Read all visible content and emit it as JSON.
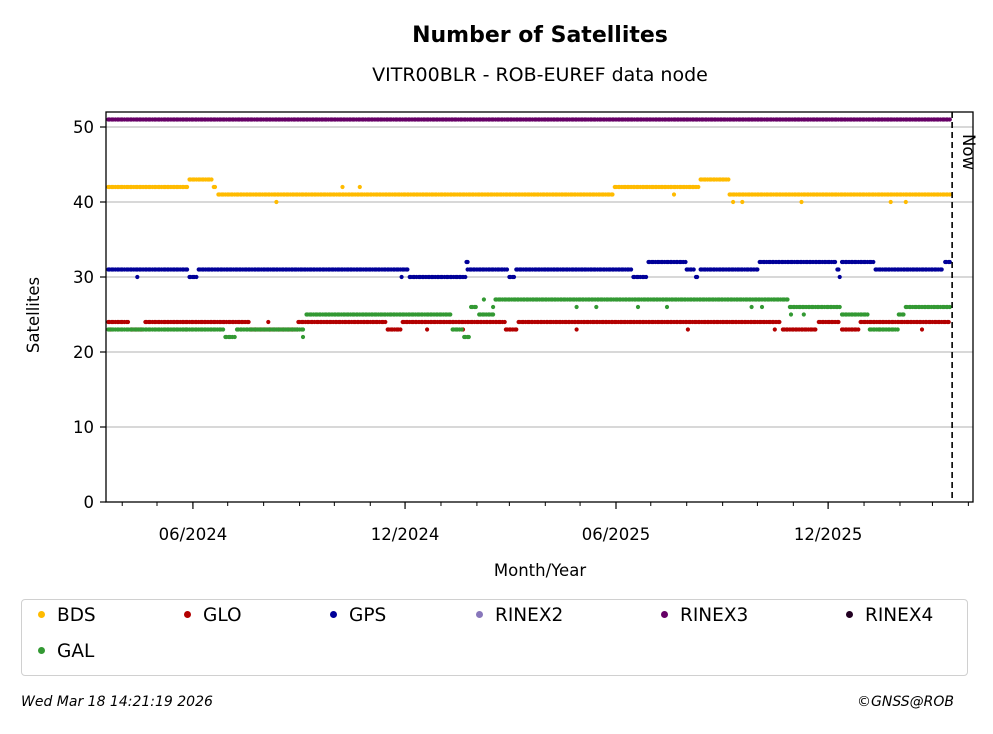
{
  "footer": {
    "timestamp": "Wed Mar 18 14:21:19 2026",
    "credit": "©GNSS@ROB"
  },
  "chart_data": {
    "type": "scatter",
    "title": "Number of Satellites",
    "subtitle": "VITR00BLR - ROB-EUREF data node",
    "xlabel": "Month/Year",
    "ylabel": "Satellites",
    "x_type": "date",
    "xlim": [
      "2024-03-18",
      "2026-04-05"
    ],
    "ylim": [
      0,
      52
    ],
    "yticks": [
      0,
      10,
      20,
      30,
      40,
      50
    ],
    "xticks": [
      {
        "date": "2024-06-01",
        "label": "06/2024"
      },
      {
        "date": "2024-12-01",
        "label": "12/2024"
      },
      {
        "date": "2025-06-01",
        "label": "06/2025"
      },
      {
        "date": "2025-12-01",
        "label": "12/2025"
      }
    ],
    "grid": "y",
    "now_marker": {
      "date": "2026-03-18",
      "label": "Now",
      "linestyle": "dashed"
    },
    "legend_position": "below",
    "series": [
      {
        "name": "BDS",
        "color": "#ffbb00",
        "segments": [
          {
            "from": "2024-03-20",
            "to": "2024-05-28",
            "value": 42
          },
          {
            "from": "2024-05-29",
            "to": "2024-06-18",
            "value": 43
          },
          {
            "from": "2024-06-19",
            "to": "2024-06-22",
            "value": 42
          },
          {
            "from": "2024-06-23",
            "to": "2025-05-30",
            "value": 41
          },
          {
            "from": "2025-05-31",
            "to": "2025-08-12",
            "value": 42
          },
          {
            "from": "2025-08-13",
            "to": "2025-09-06",
            "value": 43
          },
          {
            "from": "2025-09-07",
            "to": "2026-03-17",
            "value": 41
          }
        ],
        "outliers": [
          {
            "date": "2024-08-12",
            "value": 40
          },
          {
            "date": "2024-10-08",
            "value": 42
          },
          {
            "date": "2024-10-23",
            "value": 42
          },
          {
            "date": "2025-07-21",
            "value": 41
          },
          {
            "date": "2025-09-10",
            "value": 40
          },
          {
            "date": "2025-09-18",
            "value": 40
          },
          {
            "date": "2025-11-08",
            "value": 40
          },
          {
            "date": "2026-01-24",
            "value": 40
          },
          {
            "date": "2026-02-06",
            "value": 40
          }
        ]
      },
      {
        "name": "GLO",
        "color": "#b30000",
        "segments": [
          {
            "from": "2024-03-20",
            "to": "2024-04-08",
            "value": 24
          },
          {
            "from": "2024-04-09",
            "to": "2024-04-20",
            "value": 23
          },
          {
            "from": "2024-04-21",
            "to": "2024-07-20",
            "value": 24
          },
          {
            "from": "2024-07-21",
            "to": "2024-08-30",
            "value": 23
          },
          {
            "from": "2024-08-31",
            "to": "2024-11-15",
            "value": 24
          },
          {
            "from": "2024-11-16",
            "to": "2024-11-28",
            "value": 23
          },
          {
            "from": "2024-11-29",
            "to": "2025-02-25",
            "value": 24
          },
          {
            "from": "2025-02-26",
            "to": "2025-03-08",
            "value": 23
          },
          {
            "from": "2025-03-09",
            "to": "2025-10-22",
            "value": 24
          },
          {
            "from": "2025-10-23",
            "to": "2025-11-22",
            "value": 23
          },
          {
            "from": "2025-11-23",
            "to": "2025-12-12",
            "value": 24
          },
          {
            "from": "2025-12-13",
            "to": "2025-12-28",
            "value": 23
          },
          {
            "from": "2025-12-29",
            "to": "2026-03-17",
            "value": 24
          }
        ],
        "outliers": [
          {
            "date": "2024-03-22",
            "value": 23
          },
          {
            "date": "2024-05-26",
            "value": 23
          },
          {
            "date": "2024-08-05",
            "value": 24
          },
          {
            "date": "2024-12-20",
            "value": 23
          },
          {
            "date": "2025-01-20",
            "value": 23
          },
          {
            "date": "2025-04-28",
            "value": 23
          },
          {
            "date": "2025-08-02",
            "value": 23
          },
          {
            "date": "2025-10-16",
            "value": 23
          },
          {
            "date": "2026-01-14",
            "value": 23
          },
          {
            "date": "2026-02-20",
            "value": 23
          }
        ]
      },
      {
        "name": "GPS",
        "color": "#000099",
        "segments": [
          {
            "from": "2024-03-20",
            "to": "2024-05-28",
            "value": 31
          },
          {
            "from": "2024-05-29",
            "to": "2024-06-05",
            "value": 30
          },
          {
            "from": "2024-06-06",
            "to": "2024-12-04",
            "value": 31
          },
          {
            "from": "2024-12-05",
            "to": "2025-01-22",
            "value": 30
          },
          {
            "from": "2025-01-23",
            "to": "2025-01-25",
            "value": 32
          },
          {
            "from": "2025-01-26",
            "to": "2025-02-28",
            "value": 31
          },
          {
            "from": "2025-03-01",
            "to": "2025-03-06",
            "value": 30
          },
          {
            "from": "2025-03-07",
            "to": "2025-06-15",
            "value": 31
          },
          {
            "from": "2025-06-16",
            "to": "2025-06-28",
            "value": 30
          },
          {
            "from": "2025-06-29",
            "to": "2025-07-31",
            "value": 32
          },
          {
            "from": "2025-08-01",
            "to": "2025-08-08",
            "value": 31
          },
          {
            "from": "2025-08-09",
            "to": "2025-08-12",
            "value": 30
          },
          {
            "from": "2025-08-13",
            "to": "2025-10-02",
            "value": 31
          },
          {
            "from": "2025-10-03",
            "to": "2025-12-08",
            "value": 32
          },
          {
            "from": "2025-12-09",
            "to": "2025-12-12",
            "value": 31
          },
          {
            "from": "2025-12-13",
            "to": "2026-01-10",
            "value": 32
          },
          {
            "from": "2026-01-11",
            "to": "2026-03-11",
            "value": 31
          },
          {
            "from": "2026-03-12",
            "to": "2026-03-17",
            "value": 32
          }
        ],
        "outliers": [
          {
            "date": "2024-04-14",
            "value": 30
          },
          {
            "date": "2024-11-28",
            "value": 30
          },
          {
            "date": "2025-01-24",
            "value": 31
          },
          {
            "date": "2025-12-11",
            "value": 30
          }
        ]
      },
      {
        "name": "RINEX2",
        "color": "#8877bb",
        "segments": [],
        "outliers": []
      },
      {
        "name": "RINEX3",
        "color": "#660066",
        "segments": [
          {
            "from": "2024-03-20",
            "to": "2026-03-17",
            "value": 51
          }
        ],
        "outliers": []
      },
      {
        "name": "RINEX4",
        "color": "#220022",
        "segments": [],
        "outliers": []
      },
      {
        "name": "GAL",
        "color": "#339933",
        "segments": [
          {
            "from": "2024-03-20",
            "to": "2024-06-28",
            "value": 23
          },
          {
            "from": "2024-06-29",
            "to": "2024-07-08",
            "value": 22
          },
          {
            "from": "2024-07-09",
            "to": "2024-09-06",
            "value": 23
          },
          {
            "from": "2024-09-07",
            "to": "2025-01-10",
            "value": 25
          },
          {
            "from": "2025-01-11",
            "to": "2025-01-20",
            "value": 23
          },
          {
            "from": "2025-01-21",
            "to": "2025-01-26",
            "value": 22
          },
          {
            "from": "2025-01-27",
            "to": "2025-02-02",
            "value": 26
          },
          {
            "from": "2025-02-03",
            "to": "2025-02-16",
            "value": 25
          },
          {
            "from": "2025-02-17",
            "to": "2025-10-28",
            "value": 27
          },
          {
            "from": "2025-10-29",
            "to": "2025-12-12",
            "value": 26
          },
          {
            "from": "2025-12-13",
            "to": "2026-01-05",
            "value": 25
          },
          {
            "from": "2026-01-06",
            "to": "2026-01-30",
            "value": 23
          },
          {
            "from": "2026-01-31",
            "to": "2026-02-05",
            "value": 25
          },
          {
            "from": "2026-02-06",
            "to": "2026-03-17",
            "value": 26
          }
        ],
        "outliers": [
          {
            "date": "2024-09-04",
            "value": 22
          },
          {
            "date": "2025-02-07",
            "value": 27
          },
          {
            "date": "2025-02-15",
            "value": 26
          },
          {
            "date": "2025-04-28",
            "value": 26
          },
          {
            "date": "2025-05-15",
            "value": 26
          },
          {
            "date": "2025-06-20",
            "value": 26
          },
          {
            "date": "2025-07-15",
            "value": 26
          },
          {
            "date": "2025-09-26",
            "value": 26
          },
          {
            "date": "2025-10-05",
            "value": 26
          },
          {
            "date": "2025-10-30",
            "value": 25
          },
          {
            "date": "2025-11-10",
            "value": 25
          }
        ]
      }
    ]
  }
}
